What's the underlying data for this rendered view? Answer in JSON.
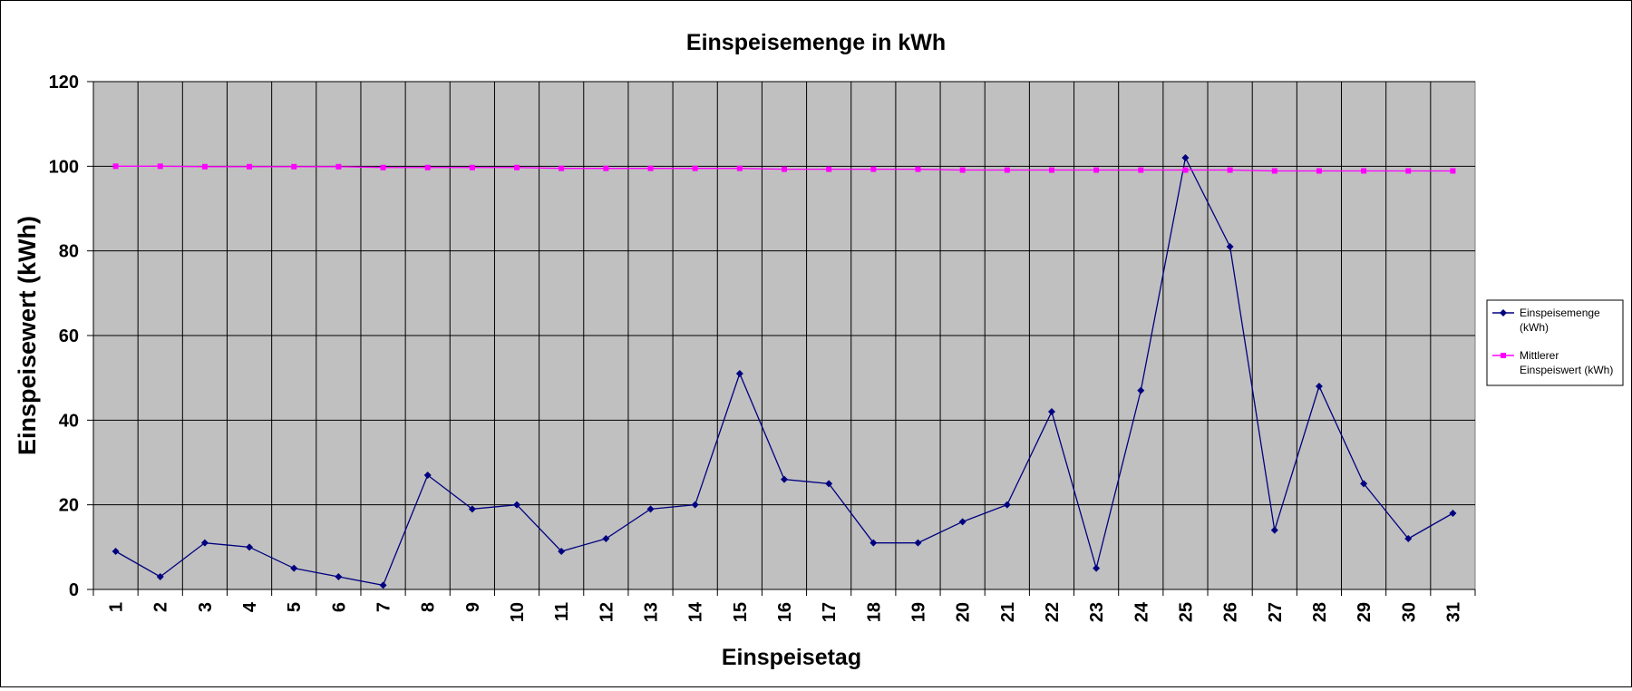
{
  "chart_data": {
    "type": "line",
    "title": "Einspeisemenge in kWh",
    "xlabel": "Einspeisetag",
    "ylabel": "Einspeisewert  (kWh)",
    "ylim": [
      0,
      120
    ],
    "yticks": [
      0,
      20,
      40,
      60,
      80,
      100,
      120
    ],
    "grid": true,
    "legend_position": "right",
    "categories": [
      "1",
      "2",
      "3",
      "4",
      "5",
      "6",
      "7",
      "8",
      "9",
      "10",
      "11",
      "12",
      "13",
      "14",
      "15",
      "16",
      "17",
      "18",
      "19",
      "20",
      "21",
      "22",
      "23",
      "24",
      "25",
      "26",
      "27",
      "28",
      "29",
      "30",
      "31"
    ],
    "series": [
      {
        "name": "Einspeisemenge (kWh)",
        "color": "#000080",
        "marker": "diamond",
        "values": [
          9,
          3,
          11,
          10,
          5,
          3,
          1,
          27,
          19,
          20,
          9,
          12,
          19,
          20,
          51,
          26,
          25,
          11,
          11,
          16,
          20,
          42,
          5,
          47,
          102,
          81,
          14,
          48,
          25,
          12,
          18
        ]
      },
      {
        "name": "Mittlerer Einspeiswert (kWh)",
        "color": "#ff00ff",
        "marker": "square",
        "values": [
          100,
          100,
          99.9,
          99.9,
          99.9,
          99.9,
          99.7,
          99.7,
          99.7,
          99.7,
          99.5,
          99.5,
          99.5,
          99.5,
          99.5,
          99.3,
          99.3,
          99.3,
          99.3,
          99.1,
          99.1,
          99.1,
          99.1,
          99.1,
          99.1,
          99.1,
          98.9,
          98.9,
          98.9,
          98.9,
          98.9
        ]
      }
    ],
    "legend": {
      "entry1_line1": "Einspeisemenge",
      "entry1_line2": "(kWh)",
      "entry2_line1": "Mittlerer",
      "entry2_line2": "Einspeiswert (kWh)"
    },
    "plot_background": "#c0c0c0"
  }
}
